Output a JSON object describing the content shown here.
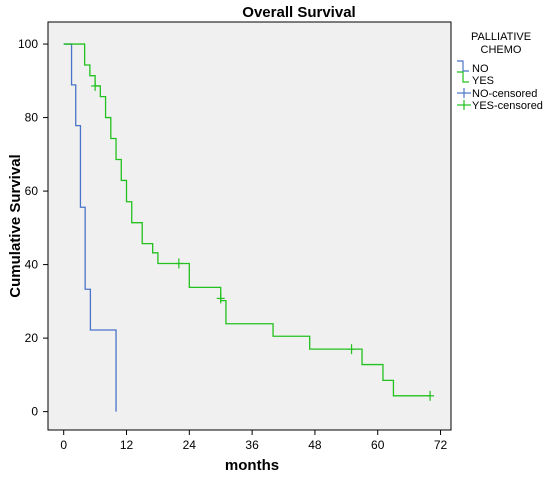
{
  "chart_data": {
    "type": "line",
    "subtype": "kaplan-meier step",
    "title": "Overall Survival",
    "xlabel": "months",
    "ylabel": "Cumulative Survival",
    "xlim": [
      -3,
      74
    ],
    "ylim": [
      -5,
      106
    ],
    "xticks": [
      0,
      12,
      24,
      36,
      48,
      60,
      72
    ],
    "yticks": [
      0,
      20,
      40,
      60,
      80,
      100
    ],
    "grid": false,
    "legend": {
      "title": "PALLIATIVE CHEMO",
      "title_lines": [
        "PALLIATIVE",
        "CHEMO"
      ],
      "placement": "top-right outside plot",
      "entries": [
        "NO",
        "YES",
        "NO-censored",
        "YES-censored"
      ]
    },
    "series": [
      {
        "name": "NO",
        "color": "#4a74c9",
        "x": [
          0,
          1.5,
          2.3,
          3.2,
          4.1,
          5.1,
          10.0
        ],
        "y": [
          100,
          88.9,
          77.8,
          55.6,
          33.3,
          22.2,
          11.1
        ],
        "end": [
          10.0,
          0
        ]
      },
      {
        "name": "YES",
        "color": "#22c11e",
        "x": [
          0,
          4,
          5,
          6,
          7,
          8,
          9,
          10,
          11,
          12,
          13,
          15,
          17,
          18,
          24,
          30,
          31,
          40,
          47,
          57,
          61,
          63,
          70
        ],
        "y": [
          100,
          94.3,
          91.4,
          88.6,
          85.7,
          80.0,
          74.3,
          68.6,
          62.9,
          57.1,
          51.4,
          45.7,
          43.2,
          40.3,
          33.8,
          30.2,
          23.9,
          20.5,
          17.0,
          12.8,
          8.5,
          4.3,
          4.3
        ]
      }
    ],
    "censored": [
      {
        "series": "YES",
        "x": 6,
        "y": 88.6
      },
      {
        "series": "YES",
        "x": 22,
        "y": 40.3
      },
      {
        "series": "YES",
        "x": 30,
        "y": 30.8
      },
      {
        "series": "YES",
        "x": 55,
        "y": 17.0
      },
      {
        "series": "YES",
        "x": 70,
        "y": 4.3
      }
    ],
    "colors": {
      "plot_background": "#f0f0f0",
      "no": "#4a74c9",
      "yes": "#22c11e"
    }
  }
}
